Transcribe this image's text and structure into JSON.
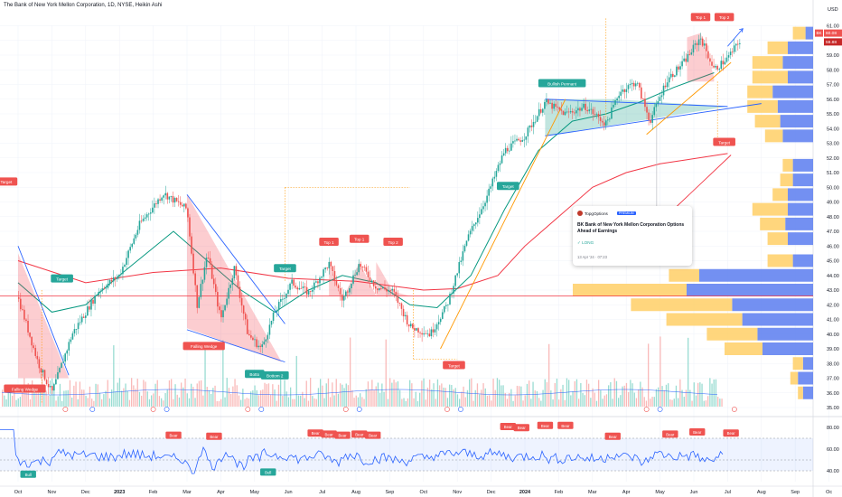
{
  "header": {
    "title": "The Bank of New York Mellon Corporation, 1D, NYSE, Heikin Ashi",
    "currency": "USD"
  },
  "colors": {
    "up": "#26a69a",
    "down": "#ef5350",
    "ma_fast": "#089981",
    "ma_slow": "#f23645",
    "trend": "#2962ff",
    "target_line": "#ff9800",
    "rsi": "#2962ff",
    "vol_buy": "#ffcf66",
    "vol_sell": "#5b7cf0"
  },
  "price_labels": {
    "last": "60.08",
    "prev": "59.88",
    "badge": "BK"
  },
  "pattern_labels": {
    "falling_wedge_1": "Falling Wedge",
    "falling_wedge_2": "Falling Wedge",
    "bottom_1": "Botto",
    "bottom_2": "Bottom 2",
    "top1_a": "Top 1",
    "top1_b": "Top 1",
    "top2_a": "Top 2",
    "top1_c": "Top 1",
    "top2_c": "Top 2",
    "bullish_pennant": "Bullish Pennant",
    "target_1": "Target",
    "target_2": "Target",
    "target_3": "Target",
    "target_4": "Target",
    "target_5": "Target",
    "target_6": "Target",
    "rsi_bull": "Bull",
    "rsi_bull_2": "Bull",
    "rsi_bear": "Bear"
  },
  "idea_card": {
    "author": "TopgOptions",
    "badge": "PREMIUM",
    "headline": "BK Bank of New York Mellon Corporation Options Ahead of Earnings",
    "direction": "✓ LONG",
    "timestamp": "13 Apr '24 · 07:23"
  },
  "chart_data": {
    "type": "candlestick",
    "title": "The Bank of New York Mellon Corporation, 1D, NYSE, Heikin Ashi",
    "x_ticks": [
      "Oct",
      "Nov",
      "Dec",
      "2023",
      "Feb",
      "Mar",
      "Apr",
      "May",
      "Jun",
      "Jul",
      "Aug",
      "Sep",
      "Oct",
      "Nov",
      "Dec",
      "2024",
      "Feb",
      "Mar",
      "Apr",
      "May",
      "Jun",
      "Jul",
      "Aug",
      "Sep",
      "Oc"
    ],
    "y_ticks": [
      "61.00",
      "60.00",
      "59.00",
      "58.00",
      "57.00",
      "56.00",
      "55.00",
      "54.00",
      "53.00",
      "52.00",
      "51.00",
      "50.00",
      "49.00",
      "48.00",
      "47.00",
      "46.00",
      "45.00",
      "44.00",
      "43.00",
      "42.00",
      "41.00",
      "40.00",
      "39.00",
      "38.00",
      "37.00",
      "36.00",
      "35.00"
    ],
    "ylim": [
      35,
      61
    ],
    "price_path": [
      [
        0,
        42.5
      ],
      [
        0.6,
        38.0
      ],
      [
        1.0,
        36.0
      ],
      [
        1.6,
        40.0
      ],
      [
        2.4,
        43.0
      ],
      [
        3.0,
        44.0
      ],
      [
        3.6,
        47.5
      ],
      [
        4.3,
        49.6
      ],
      [
        5.0,
        48.5
      ],
      [
        5.3,
        42.0
      ],
      [
        5.6,
        45.5
      ],
      [
        6.0,
        41.0
      ],
      [
        6.4,
        44.5
      ],
      [
        6.8,
        40.0
      ],
      [
        7.2,
        39.0
      ],
      [
        7.6,
        41.5
      ],
      [
        8.1,
        43.5
      ],
      [
        8.6,
        42.8
      ],
      [
        9.2,
        44.8
      ],
      [
        9.6,
        42.3
      ],
      [
        10.1,
        44.8
      ],
      [
        10.6,
        43.2
      ],
      [
        11.1,
        42.9
      ],
      [
        11.6,
        40.5
      ],
      [
        12.2,
        40.0
      ],
      [
        12.7,
        42.0
      ],
      [
        13.3,
        46.5
      ],
      [
        13.9,
        49.5
      ],
      [
        14.4,
        52.5
      ],
      [
        15.0,
        53.5
      ],
      [
        15.6,
        55.8
      ],
      [
        16.2,
        55.0
      ],
      [
        16.8,
        55.5
      ],
      [
        17.4,
        54.3
      ],
      [
        17.8,
        56.5
      ],
      [
        18.3,
        57.2
      ],
      [
        18.7,
        54.5
      ],
      [
        19.2,
        57.3
      ],
      [
        19.7,
        58.5
      ],
      [
        20.2,
        60.2
      ],
      [
        20.6,
        58.0
      ],
      [
        21.0,
        58.8
      ],
      [
        21.4,
        60.1
      ]
    ],
    "ma_fast": [
      [
        0,
        43.5
      ],
      [
        1,
        41.5
      ],
      [
        2,
        42.0
      ],
      [
        3,
        44.0
      ],
      [
        4.6,
        47.0
      ],
      [
        5.6,
        45.0
      ],
      [
        6.6,
        43.0
      ],
      [
        7.6,
        41.5
      ],
      [
        8.6,
        43.0
      ],
      [
        9.6,
        44.0
      ],
      [
        10.6,
        43.5
      ],
      [
        11.6,
        42.0
      ],
      [
        12.4,
        41.8
      ],
      [
        13.4,
        44.0
      ],
      [
        14.4,
        48.5
      ],
      [
        15.4,
        52.5
      ],
      [
        16.4,
        54.5
      ],
      [
        17.4,
        55.0
      ],
      [
        18.4,
        55.8
      ],
      [
        19.4,
        56.8
      ],
      [
        20.6,
        57.8
      ]
    ],
    "ma_slow": [
      [
        0,
        45.0
      ],
      [
        2,
        43.5
      ],
      [
        4,
        44.2
      ],
      [
        6,
        44.5
      ],
      [
        8,
        43.8
      ],
      [
        10,
        43.6
      ],
      [
        12,
        43.0
      ],
      [
        13,
        43.1
      ],
      [
        14.2,
        44.0
      ],
      [
        15,
        46.0
      ],
      [
        16,
        48.0
      ],
      [
        17,
        50.0
      ],
      [
        18,
        51.0
      ],
      [
        19,
        51.6
      ],
      [
        21,
        52.3
      ]
    ],
    "horizontal_level": 42.6,
    "volume_profile": [
      {
        "price": 60.5,
        "buy": 0.05,
        "sell": 0.03
      },
      {
        "price": 59.5,
        "buy": 0.08,
        "sell": 0.1
      },
      {
        "price": 58.5,
        "buy": 0.12,
        "sell": 0.12
      },
      {
        "price": 57.5,
        "buy": 0.14,
        "sell": 0.1
      },
      {
        "price": 56.5,
        "buy": 0.1,
        "sell": 0.16
      },
      {
        "price": 55.5,
        "buy": 0.12,
        "sell": 0.14
      },
      {
        "price": 54.5,
        "buy": 0.1,
        "sell": 0.13
      },
      {
        "price": 53.5,
        "buy": 0.07,
        "sell": 0.12
      },
      {
        "price": 51.5,
        "buy": 0.04,
        "sell": 0.08
      },
      {
        "price": 50.5,
        "buy": 0.05,
        "sell": 0.08
      },
      {
        "price": 49.5,
        "buy": 0.06,
        "sell": 0.1
      },
      {
        "price": 48.5,
        "buy": 0.14,
        "sell": 0.1
      },
      {
        "price": 47.5,
        "buy": 0.1,
        "sell": 0.11
      },
      {
        "price": 46.5,
        "buy": 0.08,
        "sell": 0.1
      },
      {
        "price": 45.0,
        "buy": 0.1,
        "sell": 0.08
      },
      {
        "price": 44.0,
        "buy": 0.12,
        "sell": 0.45
      },
      {
        "price": 43.0,
        "buy": 0.45,
        "sell": 0.5
      },
      {
        "price": 42.0,
        "buy": 0.4,
        "sell": 0.32
      },
      {
        "price": 41.0,
        "buy": 0.3,
        "sell": 0.28
      },
      {
        "price": 40.0,
        "buy": 0.2,
        "sell": 0.22
      },
      {
        "price": 39.0,
        "buy": 0.15,
        "sell": 0.2
      },
      {
        "price": 38.0,
        "buy": 0.04,
        "sell": 0.04
      },
      {
        "price": 37.0,
        "buy": 0.03,
        "sell": 0.06
      },
      {
        "price": 36.0,
        "buy": 0.02,
        "sell": 0.04
      }
    ],
    "rsi": {
      "y_ticks": [
        "80.00",
        "60.00",
        "40.00"
      ],
      "ylim": [
        30,
        90
      ],
      "band": [
        40,
        70
      ]
    }
  }
}
